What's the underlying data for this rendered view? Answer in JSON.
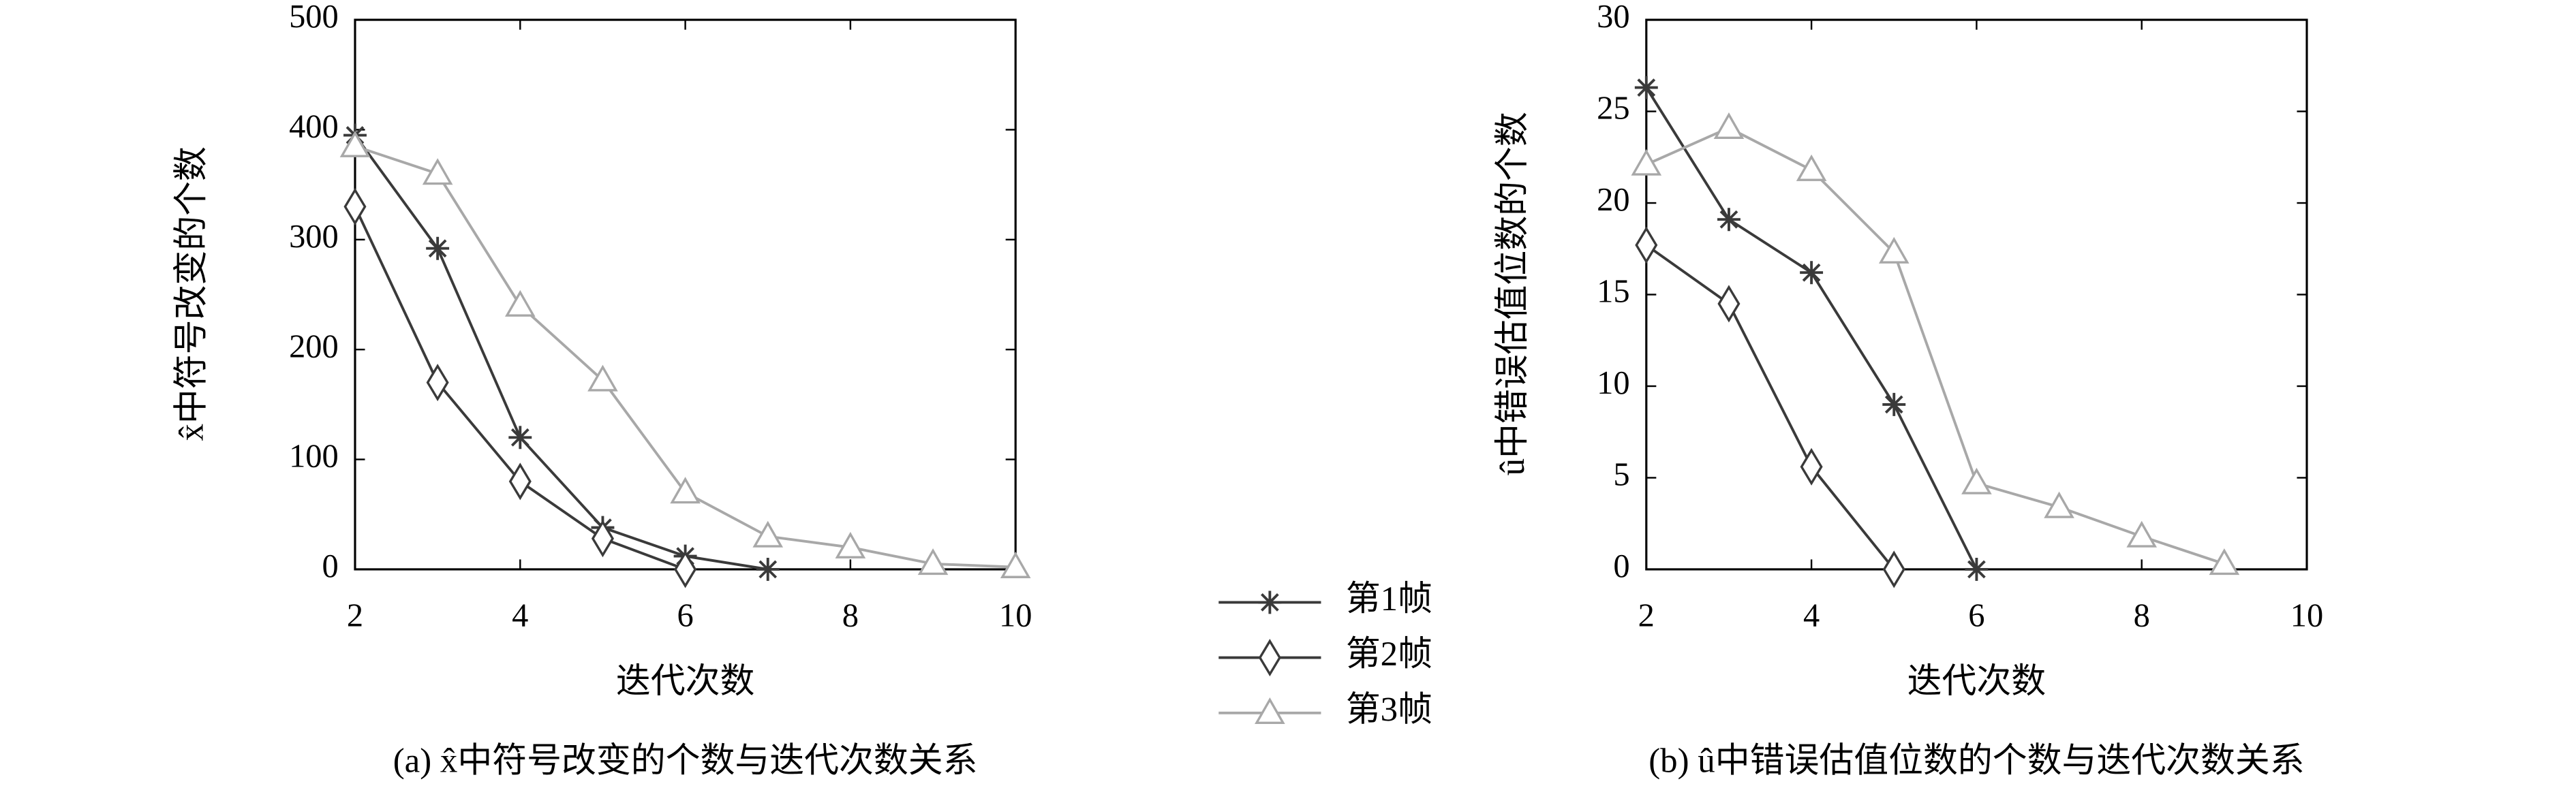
{
  "chart_data": [
    {
      "type": "line",
      "ylabel": "x̂中符号改变的个数",
      "xlabel": "迭代次数",
      "caption": "(a) x̂中符号改变的个数与迭代次数关系",
      "xlim": [
        2,
        10
      ],
      "xticks": [
        2,
        4,
        6,
        8,
        10
      ],
      "ylim": [
        0,
        500
      ],
      "yticks": [
        0,
        100,
        200,
        300,
        400,
        500
      ],
      "series": [
        {
          "name": "第1帧",
          "color": "#3a3a3a",
          "marker": "star",
          "x": [
            2,
            3,
            4,
            5,
            6,
            7
          ],
          "values": [
            395,
            292,
            120,
            38,
            12,
            0
          ]
        },
        {
          "name": "第2帧",
          "color": "#3a3a3a",
          "marker": "diamond",
          "x": [
            2,
            3,
            4,
            5,
            6
          ],
          "values": [
            330,
            170,
            80,
            28,
            0
          ]
        },
        {
          "name": "第3帧",
          "color": "#a8a8a8",
          "marker": "triangle",
          "x": [
            2,
            3,
            4,
            5,
            6,
            7,
            8,
            9,
            10
          ],
          "values": [
            385,
            360,
            240,
            172,
            70,
            30,
            20,
            5,
            2
          ]
        }
      ]
    },
    {
      "type": "line",
      "ylabel": "û中错误估值位数的个数",
      "xlabel": "迭代次数",
      "caption": "(b) û中错误估值位数的个数与迭代次数关系",
      "xlim": [
        2,
        10
      ],
      "xticks": [
        2,
        4,
        6,
        8,
        10
      ],
      "ylim": [
        0,
        30
      ],
      "yticks": [
        0,
        5,
        10,
        15,
        20,
        25,
        30
      ],
      "series": [
        {
          "color": "#3a3a3a",
          "marker": "star",
          "x": [
            2,
            3,
            4,
            5,
            6
          ],
          "values": [
            26.3,
            19.1,
            16.2,
            9.0,
            0
          ]
        },
        {
          "color": "#3a3a3a",
          "marker": "diamond",
          "x": [
            2,
            3,
            4,
            5
          ],
          "values": [
            17.7,
            14.5,
            5.6,
            0
          ]
        },
        {
          "color": "#a8a8a8",
          "marker": "triangle",
          "x": [
            2,
            3,
            4,
            5,
            6,
            7,
            8,
            9
          ],
          "values": [
            22.1,
            24.1,
            21.8,
            17.3,
            4.7,
            3.4,
            1.8,
            0.3
          ]
        }
      ]
    }
  ]
}
